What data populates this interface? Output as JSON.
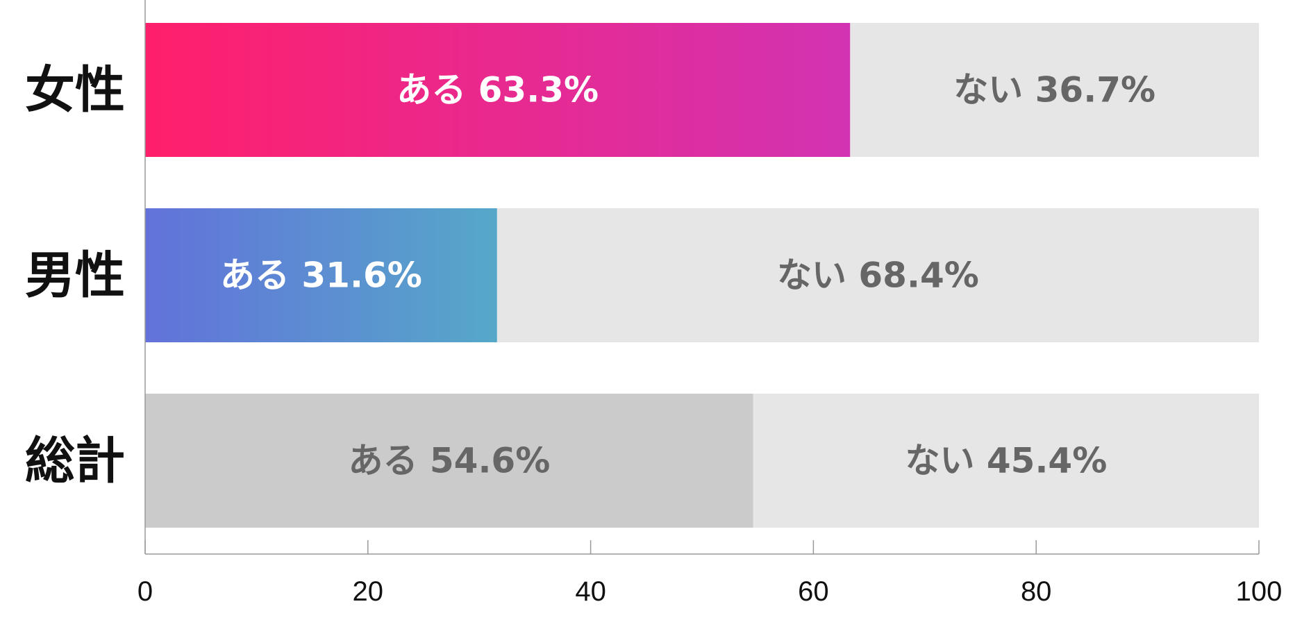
{
  "chart_data": {
    "type": "bar",
    "orientation": "horizontal",
    "stacked": true,
    "categories": [
      "女性",
      "男性",
      "総計"
    ],
    "series": [
      {
        "name": "ある",
        "values": [
          63.3,
          31.6,
          54.6
        ]
      },
      {
        "name": "ない",
        "values": [
          36.7,
          68.4,
          45.4
        ]
      }
    ],
    "segment_labels": [
      [
        "ある 63.3%",
        "ない 36.7%"
      ],
      [
        "ある 31.6%",
        "ない 68.4%"
      ],
      [
        "ある 54.6%",
        "ない 45.4%"
      ]
    ],
    "xlim": [
      0,
      100
    ],
    "x_ticks": [
      0,
      20,
      40,
      60,
      80,
      100
    ],
    "x_tick_labels": [
      "0",
      "20",
      "40",
      "60",
      "80",
      "100"
    ],
    "grid": false,
    "colors": {
      "female_yes_gradient": [
        "#ff1f6b",
        "#d233b2"
      ],
      "male_yes_gradient": [
        "#6272da",
        "#56a8c9"
      ],
      "total_yes": "#cbcbcb",
      "no": "#e6e6e6",
      "yes_text_colored": "#ffffff",
      "text_gray": "#666666",
      "axis": "#999999"
    }
  }
}
